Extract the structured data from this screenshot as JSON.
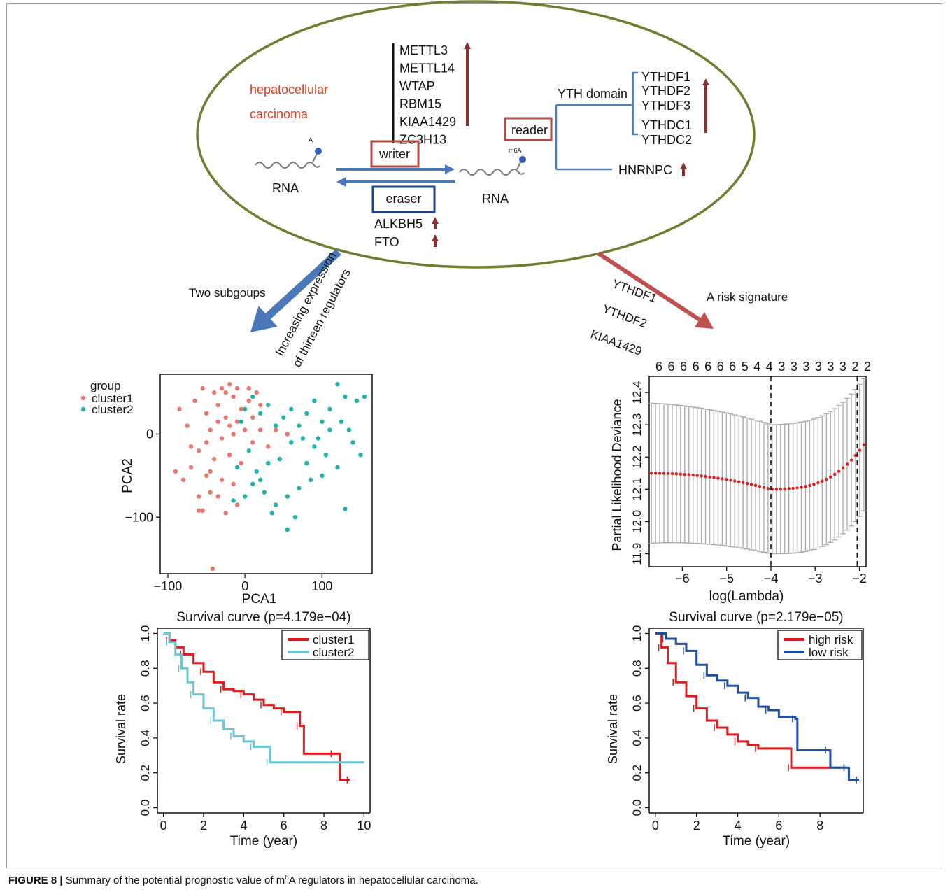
{
  "diagram": {
    "disease": [
      "hepatocellular",
      "carcinoma"
    ],
    "writers": [
      "METTL3",
      "METTL14",
      "WTAP",
      "RBM15",
      "KIAA1429",
      "ZC3H13"
    ],
    "writer_label": "writer",
    "eraser_label": "eraser",
    "erasers": [
      "ALKBH5",
      "FTO"
    ],
    "reader_label": "reader",
    "yth_label": "YTH domain",
    "yth_readers": [
      "YTHDF1",
      "YTHDF2",
      "YTHDF3",
      "YTHDC1",
      "YTHDC2"
    ],
    "hnrnpc": "HNRNPC",
    "rna_label": "RNA",
    "a_label": "A",
    "m6a_label": "m6A",
    "left_arrow_label": "Two subgoups",
    "left_arrow_text": [
      "Increasing expression",
      "of thirteen regulators"
    ],
    "right_arrow_label": "A risk signature",
    "signature_genes": [
      "YTHDF1",
      "YTHDF2",
      "KIAA1429"
    ]
  },
  "colors": {
    "ellipse": "#6b7f2f",
    "accent_red": "#e03a1e",
    "writer_box": "#b34a4a",
    "eraser_box": "#1f3f8f",
    "up_arrow": "#8b2e2e",
    "blue_arrow": "#4a78b8",
    "red_arrow": "#c0504d",
    "tree": "#4f7fc0",
    "cluster1": "#e8776c",
    "cluster2": "#1fb3ac",
    "surv_red": "#e31a1c",
    "surv_cyan": "#6bc6d6",
    "surv_blue": "#1f4ea3"
  },
  "chart_data": [
    {
      "type": "scatter",
      "xlabel": "PCA1",
      "ylabel": "PCA2",
      "legend_title": "group",
      "legend": [
        "cluster1",
        "cluster2"
      ],
      "xticks": [
        -100,
        0,
        100
      ],
      "yticks": [
        0,
        -100
      ],
      "xlim": [
        -110,
        165
      ],
      "ylim": [
        -168,
        72
      ],
      "series": [
        {
          "name": "cluster1",
          "points": [
            [
              -42,
              -162
            ],
            [
              -60,
              -92
            ],
            [
              -55,
              -92
            ],
            [
              -25,
              -95
            ],
            [
              -10,
              -85
            ],
            [
              -45,
              -70
            ],
            [
              -35,
              -75
            ],
            [
              -60,
              -75
            ],
            [
              -90,
              -45
            ],
            [
              -80,
              -55
            ],
            [
              -70,
              -40
            ],
            [
              -50,
              -50
            ],
            [
              -30,
              -55
            ],
            [
              -15,
              -60
            ],
            [
              -40,
              -30
            ],
            [
              -60,
              -20
            ],
            [
              -20,
              -25
            ],
            [
              -5,
              -35
            ],
            [
              -75,
              10
            ],
            [
              -85,
              30
            ],
            [
              -65,
              40
            ],
            [
              -50,
              25
            ],
            [
              -35,
              35
            ],
            [
              -25,
              50
            ],
            [
              -15,
              45
            ],
            [
              -5,
              30
            ],
            [
              5,
              40
            ],
            [
              15,
              50
            ],
            [
              -45,
              5
            ],
            [
              -30,
              -5
            ],
            [
              -20,
              10
            ],
            [
              -10,
              15
            ],
            [
              0,
              5
            ],
            [
              10,
              20
            ],
            [
              20,
              35
            ],
            [
              -55,
              55
            ],
            [
              -40,
              50
            ],
            [
              -30,
              55
            ],
            [
              -20,
              60
            ],
            [
              -10,
              55
            ],
            [
              5,
              55
            ],
            [
              -50,
              -10
            ],
            [
              -35,
              15
            ],
            [
              -15,
              0
            ],
            [
              -25,
              20
            ],
            [
              10,
              -10
            ],
            [
              20,
              5
            ],
            [
              30,
              -15
            ],
            [
              -70,
              -15
            ],
            [
              -45,
              -45
            ],
            [
              40,
              5
            ],
            [
              55,
              0
            ]
          ]
        },
        {
          "name": "cluster2",
          "points": [
            [
              120,
              60
            ],
            [
              130,
              45
            ],
            [
              145,
              40
            ],
            [
              155,
              45
            ],
            [
              90,
              40
            ],
            [
              110,
              30
            ],
            [
              100,
              15
            ],
            [
              125,
              15
            ],
            [
              135,
              5
            ],
            [
              80,
              25
            ],
            [
              70,
              10
            ],
            [
              60,
              30
            ],
            [
              50,
              20
            ],
            [
              40,
              10
            ],
            [
              30,
              35
            ],
            [
              20,
              25
            ],
            [
              10,
              45
            ],
            [
              0,
              30
            ],
            [
              -5,
              15
            ],
            [
              150,
              -25
            ],
            [
              140,
              -10
            ],
            [
              120,
              -40
            ],
            [
              105,
              -25
            ],
            [
              90,
              -15
            ],
            [
              75,
              -5
            ],
            [
              60,
              -10
            ],
            [
              45,
              -30
            ],
            [
              30,
              -35
            ],
            [
              15,
              -45
            ],
            [
              5,
              -20
            ],
            [
              -10,
              -40
            ],
            [
              100,
              -50
            ],
            [
              85,
              -55
            ],
            [
              70,
              -65
            ],
            [
              55,
              -75
            ],
            [
              40,
              -85
            ],
            [
              25,
              -70
            ],
            [
              10,
              -60
            ],
            [
              0,
              -75
            ],
            [
              -15,
              -80
            ],
            [
              130,
              -90
            ],
            [
              55,
              -115
            ],
            [
              65,
              -100
            ],
            [
              35,
              -95
            ],
            [
              20,
              -55
            ],
            [
              95,
              -5
            ],
            [
              110,
              5
            ],
            [
              80,
              -35
            ]
          ]
        }
      ]
    },
    {
      "type": "line",
      "xlabel": "log(Lambda)",
      "ylabel": "Partial Likelihood Deviance",
      "top_ticks": [
        "6",
        "6",
        "6",
        "6",
        "6",
        "6",
        "6",
        "5",
        "4",
        "4",
        "3",
        "3",
        "3",
        "3",
        "3",
        "3",
        "2",
        "2"
      ],
      "xticks": [
        -6,
        -5,
        -4,
        -3,
        -2
      ],
      "yticks": [
        11.9,
        12.0,
        12.1,
        12.2,
        12.3,
        12.4
      ],
      "xlim": [
        -6.75,
        -1.85
      ],
      "ylim": [
        11.86,
        12.45
      ],
      "vlines": [
        -4.0,
        -2.05
      ],
      "lambda_min": -4.0,
      "lambda_1se": -2.05
    },
    {
      "type": "line",
      "title": "Survival curve (p=4.179e−04)",
      "xlabel": "Time (year)",
      "ylabel": "Survival rate",
      "xticks": [
        0,
        2,
        4,
        6,
        8,
        10
      ],
      "yticks": [
        0.0,
        0.2,
        0.4,
        0.6,
        0.8,
        1.0
      ],
      "xlim": [
        -0.3,
        10.3
      ],
      "ylim": [
        -0.03,
        1.03
      ],
      "legend": [
        "cluster1",
        "cluster2"
      ],
      "series": [
        {
          "name": "cluster1",
          "points": [
            [
              0,
              1.0
            ],
            [
              0.3,
              0.96
            ],
            [
              0.6,
              0.92
            ],
            [
              1.0,
              0.88
            ],
            [
              1.5,
              0.83
            ],
            [
              2.0,
              0.78
            ],
            [
              2.5,
              0.72
            ],
            [
              3.0,
              0.68
            ],
            [
              3.5,
              0.67
            ],
            [
              4.0,
              0.65
            ],
            [
              4.5,
              0.62
            ],
            [
              5.0,
              0.59
            ],
            [
              5.5,
              0.57
            ],
            [
              6.0,
              0.55
            ],
            [
              6.7,
              0.55
            ],
            [
              6.8,
              0.47
            ],
            [
              7.0,
              0.31
            ],
            [
              8.5,
              0.31
            ],
            [
              8.8,
              0.16
            ],
            [
              9.3,
              0.16
            ]
          ]
        },
        {
          "name": "cluster2",
          "points": [
            [
              0,
              1.0
            ],
            [
              0.3,
              0.95
            ],
            [
              0.6,
              0.88
            ],
            [
              0.9,
              0.8
            ],
            [
              1.2,
              0.72
            ],
            [
              1.5,
              0.65
            ],
            [
              2.0,
              0.57
            ],
            [
              2.5,
              0.5
            ],
            [
              3.0,
              0.45
            ],
            [
              3.5,
              0.41
            ],
            [
              4.0,
              0.38
            ],
            [
              4.5,
              0.35
            ],
            [
              5.2,
              0.35
            ],
            [
              5.3,
              0.26
            ],
            [
              10.0,
              0.26
            ]
          ]
        }
      ]
    },
    {
      "type": "line",
      "title": "Survival curve (p=2.179e−05)",
      "xlabel": "Time (year)",
      "ylabel": "Survival rate",
      "xticks": [
        0,
        2,
        4,
        6,
        8
      ],
      "yticks": [
        0.0,
        0.2,
        0.4,
        0.6,
        0.8,
        1.0
      ],
      "xlim": [
        -0.3,
        10.1
      ],
      "ylim": [
        -0.03,
        1.03
      ],
      "legend": [
        "high risk",
        "low risk"
      ],
      "series": [
        {
          "name": "high risk",
          "points": [
            [
              0,
              1.0
            ],
            [
              0.3,
              0.92
            ],
            [
              0.6,
              0.83
            ],
            [
              1.0,
              0.72
            ],
            [
              1.5,
              0.64
            ],
            [
              2.0,
              0.57
            ],
            [
              2.5,
              0.5
            ],
            [
              3.0,
              0.46
            ],
            [
              3.5,
              0.42
            ],
            [
              4.0,
              0.38
            ],
            [
              4.5,
              0.36
            ],
            [
              5.0,
              0.34
            ],
            [
              6.5,
              0.34
            ],
            [
              6.6,
              0.23
            ],
            [
              9.3,
              0.23
            ]
          ]
        },
        {
          "name": "low risk",
          "points": [
            [
              0,
              1.0
            ],
            [
              0.5,
              0.97
            ],
            [
              1.0,
              0.94
            ],
            [
              1.5,
              0.9
            ],
            [
              2.0,
              0.82
            ],
            [
              2.5,
              0.76
            ],
            [
              3.0,
              0.73
            ],
            [
              3.5,
              0.7
            ],
            [
              4.0,
              0.66
            ],
            [
              4.5,
              0.63
            ],
            [
              5.0,
              0.58
            ],
            [
              5.5,
              0.56
            ],
            [
              6.0,
              0.52
            ],
            [
              6.8,
              0.51
            ],
            [
              6.9,
              0.33
            ],
            [
              8.4,
              0.33
            ],
            [
              8.5,
              0.23
            ],
            [
              9.3,
              0.23
            ],
            [
              9.4,
              0.16
            ],
            [
              9.9,
              0.16
            ]
          ]
        }
      ]
    }
  ],
  "caption": {
    "label": "FIGURE 8 |",
    "text_before": " Summary of the potential prognostic value of m",
    "sup": "6",
    "text_after": "A regulators in hepatocellular carcinoma."
  }
}
